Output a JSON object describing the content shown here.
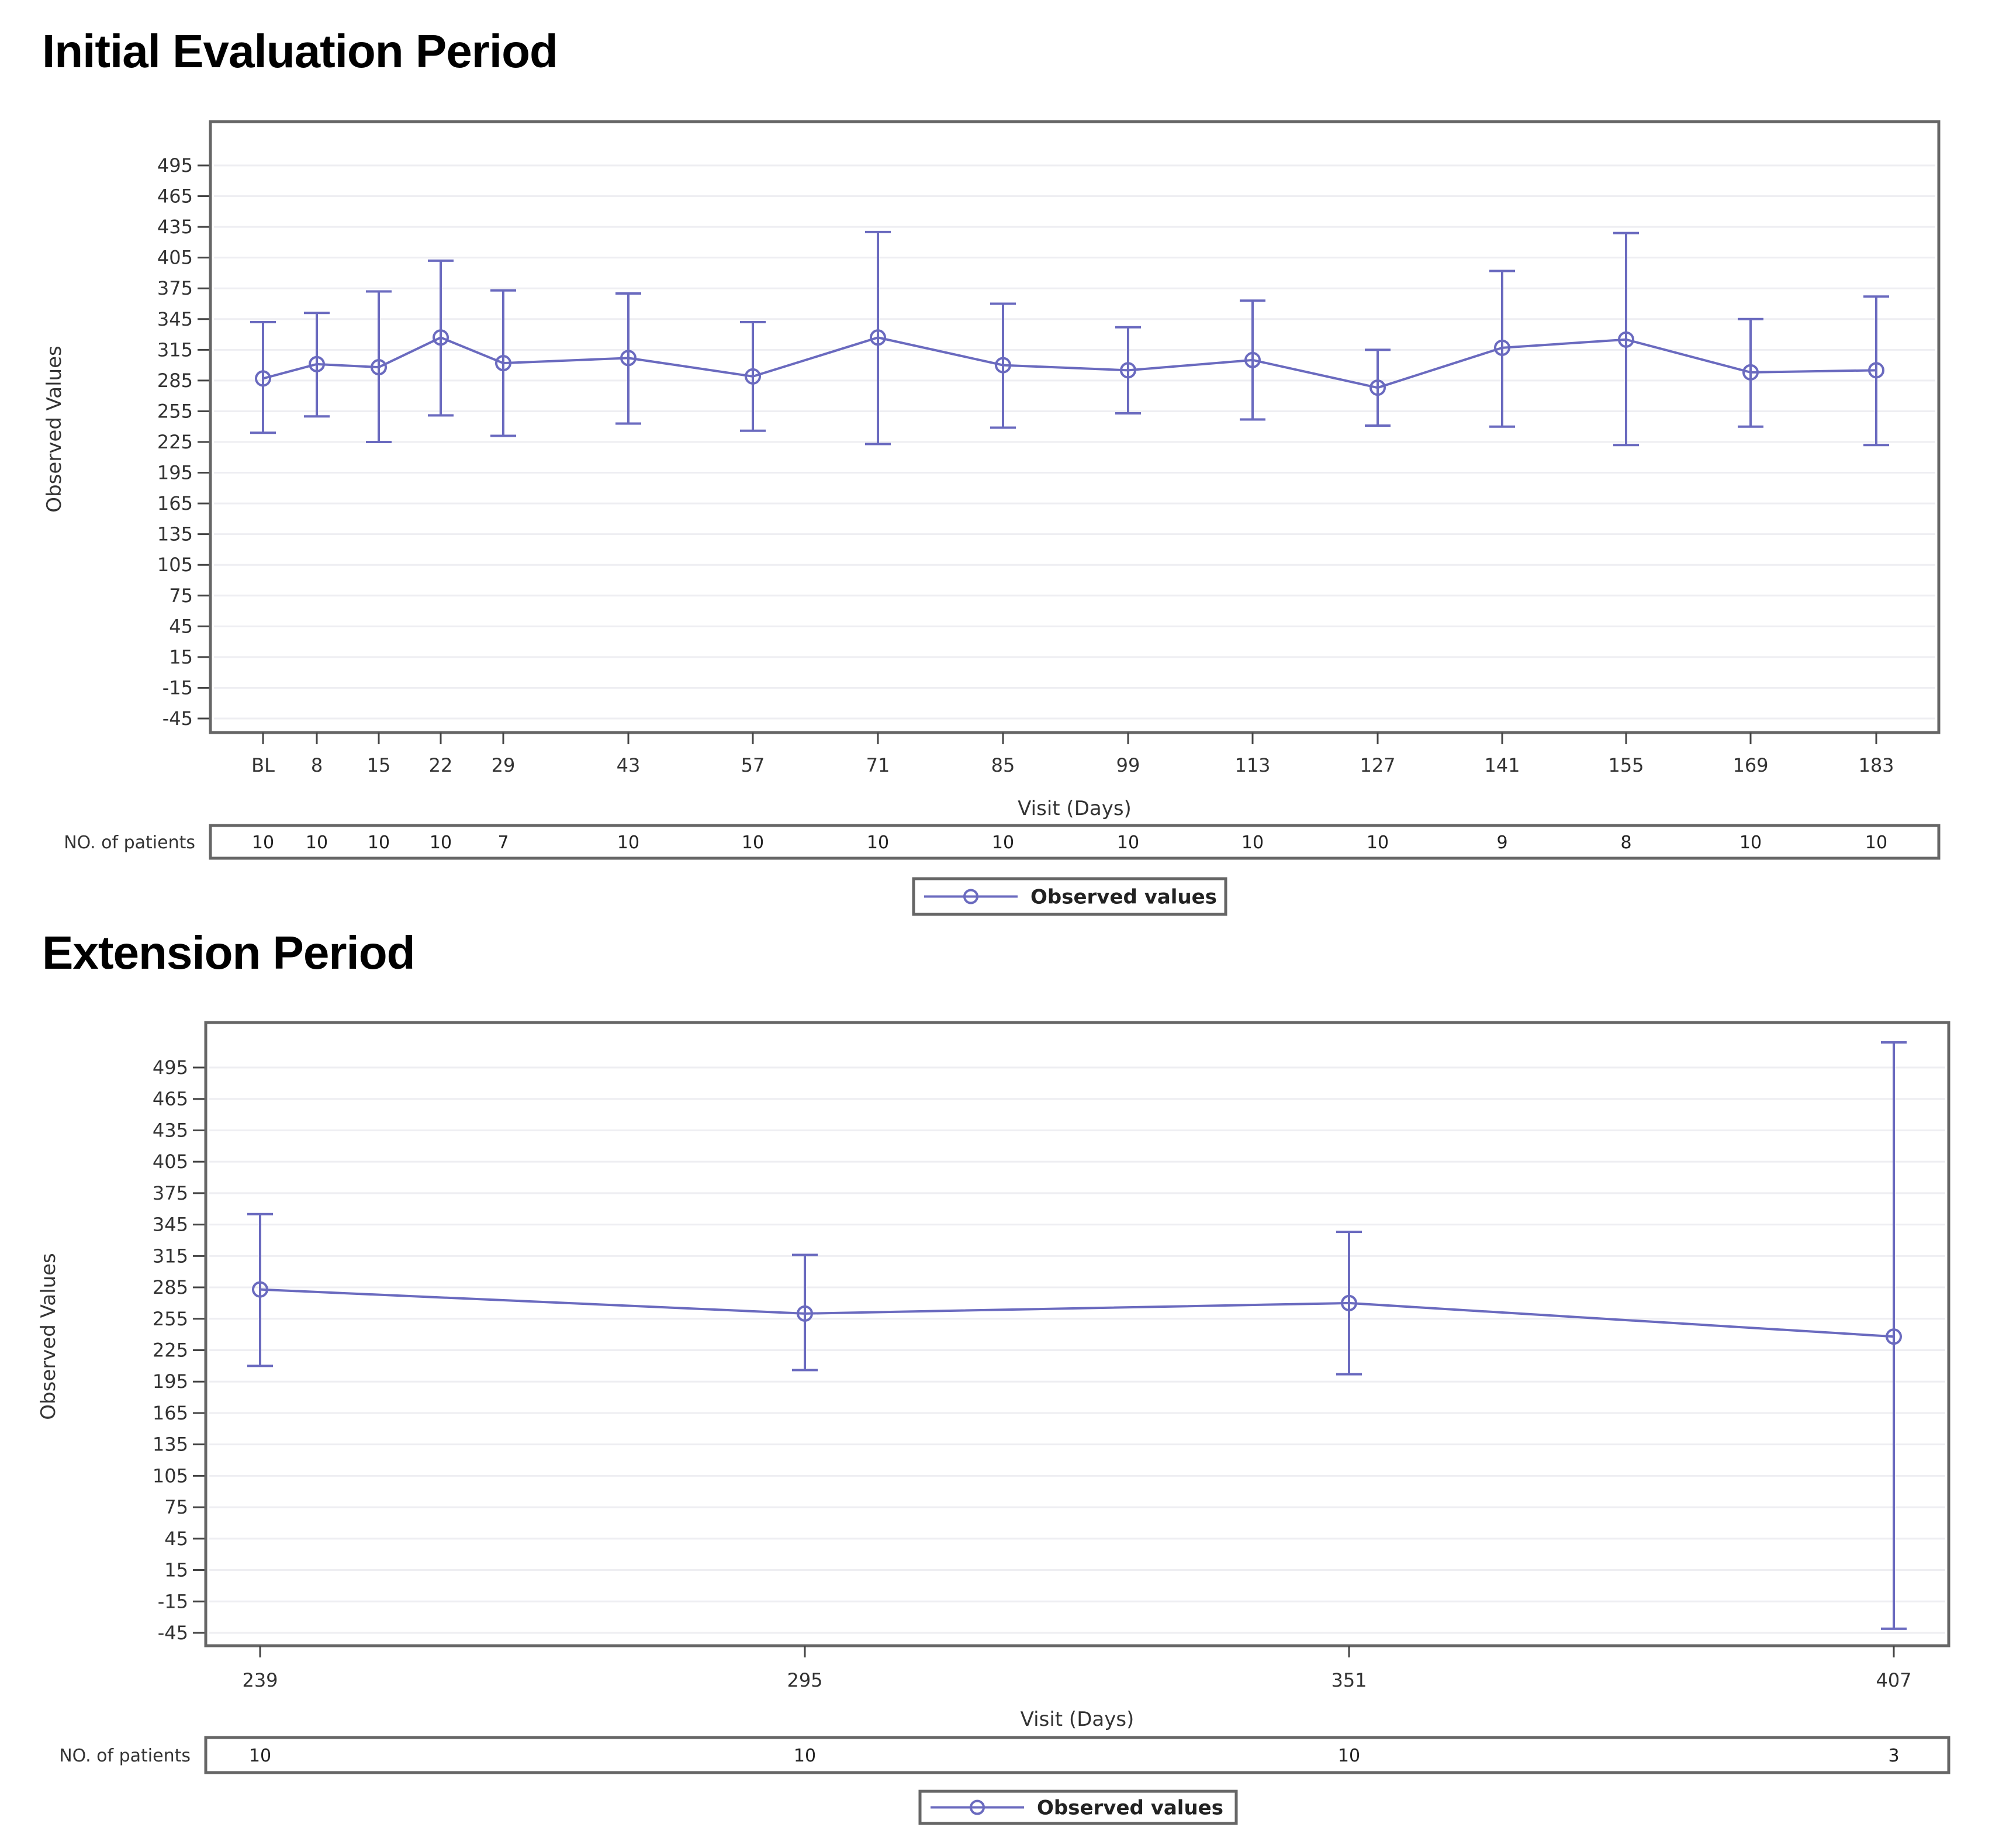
{
  "titles": {
    "initial": "Initial Evaluation Period",
    "extension": "Extension Period"
  },
  "colors": {
    "series": "#6a6abf",
    "frame": "#666666",
    "grid": "#eeeef2",
    "text": "#333333"
  },
  "chart_data": [
    {
      "type": "line",
      "title": "Initial Evaluation Period",
      "xlabel": "Visit (Days)",
      "ylabel": "Observed Values",
      "ylim": [
        -45,
        495
      ],
      "yticks": [
        495,
        465,
        435,
        405,
        375,
        345,
        315,
        285,
        255,
        225,
        195,
        165,
        135,
        105,
        75,
        45,
        15,
        -15,
        -45
      ],
      "grid": true,
      "legend": {
        "position": "bottom-center",
        "entries": [
          "Observed values"
        ]
      },
      "patients_row_label": "NO. of patients",
      "categories": [
        "BL",
        "8",
        "15",
        "22",
        "29",
        "43",
        "57",
        "71",
        "85",
        "99",
        "113",
        "127",
        "141",
        "155",
        "169",
        "183"
      ],
      "series": [
        {
          "name": "Observed values",
          "marker": "circle",
          "values": [
            287,
            301,
            298,
            327,
            302,
            307,
            289,
            327,
            300,
            295,
            305,
            278,
            317,
            325,
            293,
            295
          ],
          "upper": [
            342,
            351,
            372,
            402,
            373,
            370,
            342,
            430,
            360,
            337,
            363,
            315,
            392,
            429,
            345,
            367
          ],
          "lower": [
            234,
            250,
            225,
            251,
            231,
            243,
            236,
            223,
            239,
            253,
            247,
            241,
            240,
            222,
            240,
            222
          ]
        }
      ],
      "n_patients": [
        "10",
        "10",
        "10",
        "10",
        "7",
        "10",
        "10",
        "10",
        "10",
        "10",
        "10",
        "10",
        "9",
        "8",
        "10",
        "10"
      ]
    },
    {
      "type": "line",
      "title": "Extension Period",
      "xlabel": "Visit (Days)",
      "ylabel": "Observed Values",
      "ylim": [
        -45,
        495
      ],
      "yticks": [
        495,
        465,
        435,
        405,
        375,
        345,
        315,
        285,
        255,
        225,
        195,
        165,
        135,
        105,
        75,
        45,
        15,
        -15,
        -45
      ],
      "grid": true,
      "legend": {
        "position": "bottom-center",
        "entries": [
          "Observed values"
        ]
      },
      "patients_row_label": "NO. of patients",
      "categories": [
        "239",
        "295",
        "351",
        "407"
      ],
      "series": [
        {
          "name": "Observed values",
          "marker": "circle",
          "values": [
            283,
            260,
            270,
            238
          ],
          "upper": [
            355,
            316,
            338,
            519
          ],
          "lower": [
            210,
            206,
            202,
            -41
          ]
        }
      ],
      "n_patients": [
        "10",
        "10",
        "10",
        "3"
      ]
    }
  ]
}
